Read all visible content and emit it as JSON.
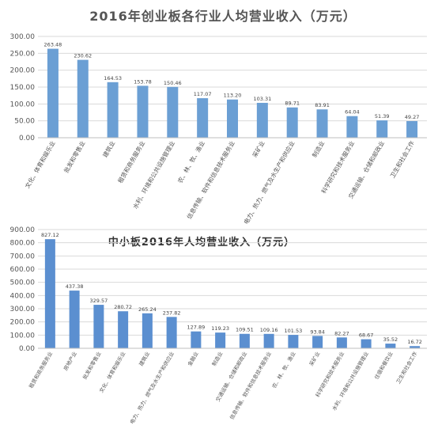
{
  "chart_data": [
    {
      "type": "bar",
      "title": "2016年创业板各行业人均营业收入（万元）",
      "ylim": [
        0,
        300
      ],
      "yticks": [
        "0.00",
        "50.00",
        "100.00",
        "150.00",
        "200.00",
        "250.00",
        "300.00"
      ],
      "grid": true,
      "categories": [
        "文化、体育和娱乐业",
        "批发和零售业",
        "建筑业",
        "租赁和商务服务业",
        "水利、环境和公共设施管理业",
        "农、林、牧、渔业",
        "信息传输、软件和信息技术服务业",
        "采矿业",
        "电力、热力、燃气及水生产和供应业",
        "制造业",
        "科学研究和技术服务业",
        "交通运输、仓储和邮政业",
        "卫生和社会工作"
      ],
      "values": [
        263.48,
        230.62,
        164.53,
        153.78,
        150.46,
        117.07,
        113.2,
        103.31,
        89.71,
        83.91,
        64.04,
        51.39,
        49.27
      ],
      "data_labels": [
        "263.48",
        "230.62",
        "164.53",
        "153.78",
        "150.46",
        "117.07",
        "113.20",
        "103.31",
        "89.71",
        "83.91",
        "64.04",
        "51.39",
        "49.27"
      ],
      "colors": {
        "bar": "#6b9fd4",
        "title": "#555555",
        "axis_text": "#555555"
      }
    },
    {
      "type": "bar",
      "title": "中小板2016年人均营业收入（万元）",
      "ylim": [
        0,
        900
      ],
      "yticks": [
        "0.00",
        "100.00",
        "200.00",
        "300.00",
        "400.00",
        "500.00",
        "600.00",
        "700.00",
        "800.00",
        "900.00"
      ],
      "grid": true,
      "categories": [
        "租赁和商务服务业",
        "房地产业",
        "批发和零售业",
        "文化、体育和娱乐业",
        "建筑业",
        "电力、热力、燃气及水生产和供应业",
        "金融业",
        "制造业",
        "交通运输、仓储和邮政业",
        "信息传输、软件和信息技术服务业",
        "农、林、牧、渔业",
        "采矿业",
        "科学研究和技术服务业",
        "水利、环境和公共设施管理业",
        "住宿和餐饮业",
        "卫生和社会工作"
      ],
      "values": [
        827.12,
        437.38,
        329.57,
        280.72,
        265.24,
        237.82,
        127.89,
        119.23,
        109.51,
        109.16,
        101.53,
        93.84,
        82.27,
        68.67,
        35.52,
        16.72
      ],
      "data_labels": [
        "827.12",
        "437.38",
        "329.57",
        "280.72",
        "265.24",
        "237.82",
        "127.89",
        "119.23",
        "109.51",
        "109.16",
        "101.53",
        "93.84",
        "82.27",
        "68.67",
        "35.52",
        "16.72"
      ],
      "colors": {
        "bar": "#5b8fd0",
        "title": "#333333",
        "axis_text": "#555555"
      }
    }
  ]
}
